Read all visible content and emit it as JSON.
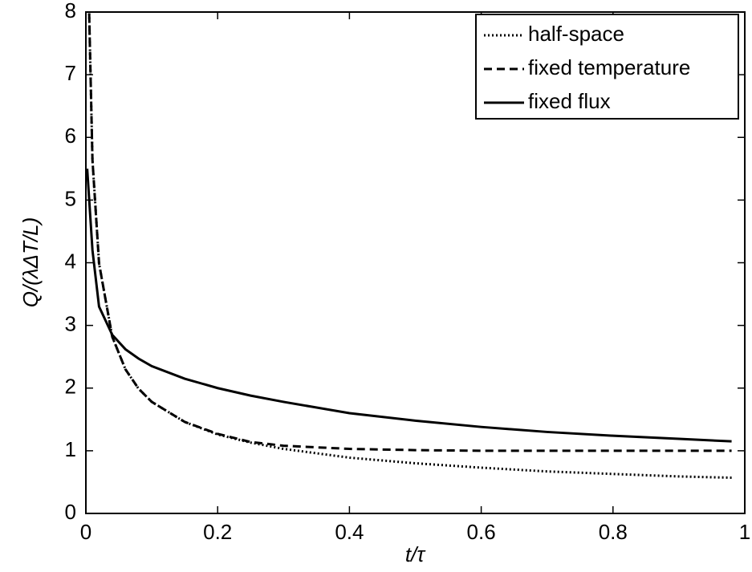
{
  "chart_data": {
    "type": "line",
    "xlabel": "t/τ",
    "ylabel": "Q/(λΔT/L)",
    "xlim": [
      0,
      1
    ],
    "ylim": [
      0,
      8
    ],
    "xticks": [
      0,
      0.2,
      0.4,
      0.6,
      0.8,
      1
    ],
    "yticks": [
      0,
      1,
      2,
      3,
      4,
      5,
      6,
      7,
      8
    ],
    "legend": "upper right",
    "grid": false,
    "series": [
      {
        "name": "half-space",
        "color": "#000000",
        "linestyle": "dotted",
        "x": [
          0.005,
          0.01,
          0.02,
          0.04,
          0.06,
          0.08,
          0.1,
          0.15,
          0.2,
          0.25,
          0.3,
          0.4,
          0.5,
          0.6,
          0.7,
          0.8,
          0.9,
          0.98
        ],
        "values": [
          7.98,
          5.64,
          3.99,
          2.82,
          2.3,
          1.99,
          1.78,
          1.46,
          1.26,
          1.13,
          1.03,
          0.89,
          0.8,
          0.73,
          0.67,
          0.63,
          0.59,
          0.57
        ]
      },
      {
        "name": "fixed temperature",
        "color": "#000000",
        "linestyle": "dashed",
        "x": [
          0.005,
          0.01,
          0.02,
          0.04,
          0.06,
          0.08,
          0.1,
          0.15,
          0.2,
          0.25,
          0.3,
          0.4,
          0.5,
          0.6,
          0.7,
          0.8,
          0.9,
          0.98
        ],
        "values": [
          7.98,
          5.64,
          3.99,
          2.82,
          2.3,
          1.99,
          1.78,
          1.46,
          1.27,
          1.14,
          1.08,
          1.03,
          1.01,
          1.0,
          1.0,
          1.0,
          1.0,
          1.0
        ]
      },
      {
        "name": "fixed flux",
        "color": "#000000",
        "linestyle": "solid",
        "x": [
          0.002,
          0.01,
          0.02,
          0.04,
          0.06,
          0.08,
          0.1,
          0.15,
          0.2,
          0.25,
          0.3,
          0.4,
          0.5,
          0.6,
          0.7,
          0.8,
          0.9,
          0.98
        ],
        "values": [
          5.5,
          4.2,
          3.3,
          2.85,
          2.62,
          2.47,
          2.35,
          2.15,
          2.0,
          1.88,
          1.78,
          1.6,
          1.48,
          1.38,
          1.3,
          1.24,
          1.19,
          1.15
        ]
      }
    ]
  }
}
